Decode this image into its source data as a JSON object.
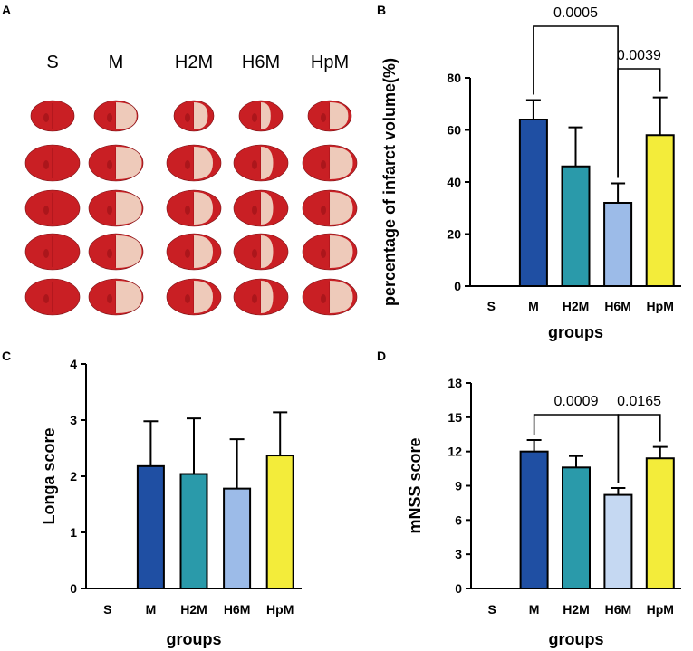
{
  "panel_a": {
    "letter": "A",
    "group_labels": [
      "S",
      "M",
      "H2M",
      "H6M",
      "HpM"
    ],
    "slices_per_group": 5
  },
  "colors": {
    "M": "#1f4fa3",
    "H2M": "#2a9aaa",
    "H6M": "#9cbbe8",
    "H6M_light": "#c5d8f2",
    "HpM": "#f3ec3a",
    "tissue_red": "#c91f24",
    "tissue_dark": "#9e1218",
    "tissue_pale": "#f2e3cf"
  },
  "chart_data": [
    {
      "panel": "B",
      "type": "bar",
      "categories": [
        "S",
        "M",
        "H2M",
        "H6M",
        "HpM"
      ],
      "values": [
        0,
        64,
        46,
        32,
        58
      ],
      "errors": [
        0,
        7.5,
        15,
        7.5,
        14.5
      ],
      "ylabel": "percentage of infarct volume(%)",
      "xlabel": "groups",
      "ylim": [
        0,
        80
      ],
      "yticks": [
        0,
        20,
        40,
        60,
        80
      ],
      "annotations": [
        {
          "from": "M",
          "to": "H6M",
          "text": "0.0005"
        },
        {
          "from": "H6M",
          "to": "HpM",
          "text": "0.0039"
        }
      ]
    },
    {
      "panel": "C",
      "type": "bar",
      "categories": [
        "S",
        "M",
        "H2M",
        "H6M",
        "HpM"
      ],
      "values": [
        0,
        2.18,
        2.04,
        1.78,
        2.37
      ],
      "errors": [
        0,
        0.8,
        0.99,
        0.88,
        0.77
      ],
      "ylabel": "Longa score",
      "xlabel": "groups",
      "ylim": [
        0,
        4
      ],
      "yticks": [
        0,
        1,
        2,
        3,
        4
      ],
      "annotations": []
    },
    {
      "panel": "D",
      "type": "bar",
      "categories": [
        "S",
        "M",
        "H2M",
        "H6M",
        "HpM"
      ],
      "values": [
        0,
        12.0,
        10.6,
        8.2,
        11.4
      ],
      "errors": [
        0,
        1.0,
        1.0,
        0.6,
        1.0
      ],
      "ylabel": "mNSS score",
      "xlabel": "groups",
      "ylim": [
        0,
        18
      ],
      "yticks": [
        0,
        3,
        6,
        9,
        12,
        15,
        18
      ],
      "annotations": [
        {
          "from": "M",
          "to": "H6M",
          "text": "0.0009"
        },
        {
          "from": "H6M",
          "to": "HpM",
          "text": "0.0165"
        }
      ]
    }
  ]
}
